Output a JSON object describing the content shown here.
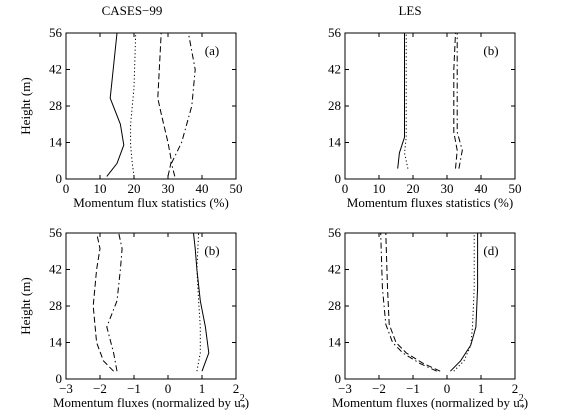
{
  "column_titles": [
    "CASES−99",
    "LES"
  ],
  "chart_data": [
    {
      "type": "line",
      "panel_label": "(a)",
      "xlabel": "Momentum flux statistics (%)",
      "ylabel": "Height (m)",
      "xlim": [
        0,
        50
      ],
      "ylim": [
        0,
        56
      ],
      "xticks": [
        "0",
        "10",
        "20",
        "30",
        "40",
        "50"
      ],
      "yticks": [
        "0",
        "14",
        "28",
        "42",
        "56"
      ],
      "grid": false,
      "series": [
        {
          "style": "solid",
          "x": [
            12,
            15,
            17,
            16,
            13,
            15
          ],
          "y": [
            1,
            6,
            13,
            21,
            31,
            56
          ]
        },
        {
          "style": "dotted",
          "x": [
            20,
            19.5,
            19,
            19,
            20,
            20.5
          ],
          "y": [
            1,
            6,
            13,
            21,
            35,
            56
          ]
        },
        {
          "style": "dashed",
          "x": [
            30,
            31,
            30,
            28,
            27,
            28
          ],
          "y": [
            1,
            7,
            14,
            25,
            31,
            56
          ]
        },
        {
          "style": "dashdot",
          "x": [
            32,
            31,
            34,
            37,
            38,
            36
          ],
          "y": [
            1,
            6,
            14,
            28,
            42,
            56
          ]
        }
      ]
    },
    {
      "type": "line",
      "panel_label": "(b)",
      "xlabel": "Momentum fluxes statistics (%)",
      "ylabel": "",
      "xlim": [
        0,
        50
      ],
      "ylim": [
        0,
        56
      ],
      "xticks": [
        "0",
        "10",
        "20",
        "30",
        "40",
        "50"
      ],
      "yticks": [
        "0",
        "14",
        "28",
        "42",
        "56"
      ],
      "grid": false,
      "series": [
        {
          "style": "solid",
          "x": [
            15.5,
            16,
            17.5,
            17.5,
            17.5
          ],
          "y": [
            4,
            10,
            16,
            42,
            56
          ]
        },
        {
          "style": "dotted",
          "x": [
            18.5,
            17.5,
            18,
            18,
            18
          ],
          "y": [
            4,
            10,
            16,
            42,
            56
          ]
        },
        {
          "style": "dashed",
          "x": [
            32.5,
            33,
            32,
            32,
            32.5
          ],
          "y": [
            4,
            11,
            18,
            42,
            56
          ]
        },
        {
          "style": "dashdot",
          "x": [
            33.5,
            34.5,
            33,
            33,
            33
          ],
          "y": [
            4,
            11,
            18,
            42,
            56
          ]
        }
      ]
    },
    {
      "type": "line",
      "panel_label": "(b)",
      "xlabel": "Momentum fluxes (normalized by u",
      "xlabel_sub": "*",
      "xlabel_sup": "2",
      "xlabel_end": ")",
      "ylabel": "Height (m)",
      "xlim": [
        -3,
        2
      ],
      "ylim": [
        0,
        56
      ],
      "xticks": [
        "−3",
        "−2",
        "−1",
        "0",
        "1",
        "2"
      ],
      "yticks": [
        "0",
        "14",
        "28",
        "42",
        "56"
      ],
      "grid": false,
      "series": [
        {
          "style": "solid",
          "x": [
            1.0,
            1.2,
            1.1,
            0.95,
            0.85,
            0.8,
            0.75
          ],
          "y": [
            3,
            10,
            20,
            30,
            42,
            50,
            56
          ]
        },
        {
          "style": "dotted",
          "x": [
            0.85,
            0.95,
            0.95,
            0.9,
            0.85,
            0.9
          ],
          "y": [
            3,
            10,
            20,
            30,
            42,
            56
          ]
        },
        {
          "style": "dashed",
          "x": [
            -1.6,
            -1.9,
            -2.1,
            -2.2,
            -2.1,
            -2.0,
            -2.1
          ],
          "y": [
            3,
            7,
            14,
            28,
            42,
            50,
            56
          ]
        },
        {
          "style": "dashdot",
          "x": [
            -1.5,
            -1.6,
            -1.8,
            -1.5,
            -1.4,
            -1.35,
            -1.45
          ],
          "y": [
            3,
            10,
            20,
            30,
            42,
            50,
            56
          ]
        }
      ]
    },
    {
      "type": "line",
      "panel_label": "(d)",
      "xlabel": "Momentum fluxes (normalized by u",
      "xlabel_sub": "*",
      "xlabel_sup": "2",
      "xlabel_end": ")",
      "ylabel": "",
      "xlim": [
        -3,
        2
      ],
      "ylim": [
        0,
        56
      ],
      "xticks": [
        "−3",
        "−2",
        "−1",
        "0",
        "1",
        "2"
      ],
      "yticks": [
        "0",
        "14",
        "28",
        "42",
        "56"
      ],
      "grid": false,
      "series": [
        {
          "style": "solid",
          "x": [
            0.1,
            0.4,
            0.7,
            0.85,
            0.9,
            0.9
          ],
          "y": [
            3,
            7,
            13,
            20,
            35,
            56
          ]
        },
        {
          "style": "dotted",
          "x": [
            0.2,
            0.5,
            0.7,
            0.75,
            0.8,
            0.8
          ],
          "y": [
            3,
            7,
            13,
            20,
            35,
            56
          ]
        },
        {
          "style": "dashed",
          "x": [
            -0.2,
            -0.7,
            -1.2,
            -1.5,
            -1.7,
            -1.75,
            -1.8
          ],
          "y": [
            3,
            6,
            10,
            14,
            21,
            35,
            56
          ]
        },
        {
          "style": "dashdot",
          "x": [
            -0.3,
            -0.8,
            -1.3,
            -1.6,
            -1.8,
            -1.9,
            -1.95
          ],
          "y": [
            3,
            6,
            10,
            14,
            21,
            35,
            56
          ]
        }
      ]
    }
  ]
}
